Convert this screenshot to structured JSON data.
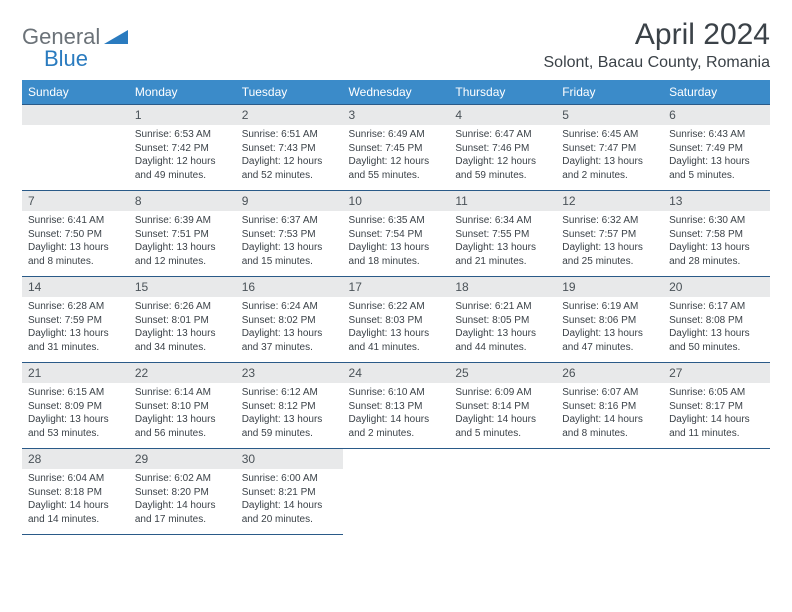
{
  "logo": {
    "general": "General",
    "blue": "Blue"
  },
  "title": "April 2024",
  "location": "Solont, Bacau County, Romania",
  "colors": {
    "header_bg": "#3b8bc9",
    "header_text": "#ffffff",
    "daynum_bg": "#e8e9ea",
    "border": "#2a5a88",
    "logo_gray": "#6b7278",
    "logo_blue": "#2a7bbf",
    "text": "#3b4248"
  },
  "weekdays": [
    "Sunday",
    "Monday",
    "Tuesday",
    "Wednesday",
    "Thursday",
    "Friday",
    "Saturday"
  ],
  "weeks": [
    [
      {
        "n": "",
        "sr": "",
        "ss": "",
        "dl": ""
      },
      {
        "n": "1",
        "sr": "Sunrise: 6:53 AM",
        "ss": "Sunset: 7:42 PM",
        "dl": "Daylight: 12 hours and 49 minutes."
      },
      {
        "n": "2",
        "sr": "Sunrise: 6:51 AM",
        "ss": "Sunset: 7:43 PM",
        "dl": "Daylight: 12 hours and 52 minutes."
      },
      {
        "n": "3",
        "sr": "Sunrise: 6:49 AM",
        "ss": "Sunset: 7:45 PM",
        "dl": "Daylight: 12 hours and 55 minutes."
      },
      {
        "n": "4",
        "sr": "Sunrise: 6:47 AM",
        "ss": "Sunset: 7:46 PM",
        "dl": "Daylight: 12 hours and 59 minutes."
      },
      {
        "n": "5",
        "sr": "Sunrise: 6:45 AM",
        "ss": "Sunset: 7:47 PM",
        "dl": "Daylight: 13 hours and 2 minutes."
      },
      {
        "n": "6",
        "sr": "Sunrise: 6:43 AM",
        "ss": "Sunset: 7:49 PM",
        "dl": "Daylight: 13 hours and 5 minutes."
      }
    ],
    [
      {
        "n": "7",
        "sr": "Sunrise: 6:41 AM",
        "ss": "Sunset: 7:50 PM",
        "dl": "Daylight: 13 hours and 8 minutes."
      },
      {
        "n": "8",
        "sr": "Sunrise: 6:39 AM",
        "ss": "Sunset: 7:51 PM",
        "dl": "Daylight: 13 hours and 12 minutes."
      },
      {
        "n": "9",
        "sr": "Sunrise: 6:37 AM",
        "ss": "Sunset: 7:53 PM",
        "dl": "Daylight: 13 hours and 15 minutes."
      },
      {
        "n": "10",
        "sr": "Sunrise: 6:35 AM",
        "ss": "Sunset: 7:54 PM",
        "dl": "Daylight: 13 hours and 18 minutes."
      },
      {
        "n": "11",
        "sr": "Sunrise: 6:34 AM",
        "ss": "Sunset: 7:55 PM",
        "dl": "Daylight: 13 hours and 21 minutes."
      },
      {
        "n": "12",
        "sr": "Sunrise: 6:32 AM",
        "ss": "Sunset: 7:57 PM",
        "dl": "Daylight: 13 hours and 25 minutes."
      },
      {
        "n": "13",
        "sr": "Sunrise: 6:30 AM",
        "ss": "Sunset: 7:58 PM",
        "dl": "Daylight: 13 hours and 28 minutes."
      }
    ],
    [
      {
        "n": "14",
        "sr": "Sunrise: 6:28 AM",
        "ss": "Sunset: 7:59 PM",
        "dl": "Daylight: 13 hours and 31 minutes."
      },
      {
        "n": "15",
        "sr": "Sunrise: 6:26 AM",
        "ss": "Sunset: 8:01 PM",
        "dl": "Daylight: 13 hours and 34 minutes."
      },
      {
        "n": "16",
        "sr": "Sunrise: 6:24 AM",
        "ss": "Sunset: 8:02 PM",
        "dl": "Daylight: 13 hours and 37 minutes."
      },
      {
        "n": "17",
        "sr": "Sunrise: 6:22 AM",
        "ss": "Sunset: 8:03 PM",
        "dl": "Daylight: 13 hours and 41 minutes."
      },
      {
        "n": "18",
        "sr": "Sunrise: 6:21 AM",
        "ss": "Sunset: 8:05 PM",
        "dl": "Daylight: 13 hours and 44 minutes."
      },
      {
        "n": "19",
        "sr": "Sunrise: 6:19 AM",
        "ss": "Sunset: 8:06 PM",
        "dl": "Daylight: 13 hours and 47 minutes."
      },
      {
        "n": "20",
        "sr": "Sunrise: 6:17 AM",
        "ss": "Sunset: 8:08 PM",
        "dl": "Daylight: 13 hours and 50 minutes."
      }
    ],
    [
      {
        "n": "21",
        "sr": "Sunrise: 6:15 AM",
        "ss": "Sunset: 8:09 PM",
        "dl": "Daylight: 13 hours and 53 minutes."
      },
      {
        "n": "22",
        "sr": "Sunrise: 6:14 AM",
        "ss": "Sunset: 8:10 PM",
        "dl": "Daylight: 13 hours and 56 minutes."
      },
      {
        "n": "23",
        "sr": "Sunrise: 6:12 AM",
        "ss": "Sunset: 8:12 PM",
        "dl": "Daylight: 13 hours and 59 minutes."
      },
      {
        "n": "24",
        "sr": "Sunrise: 6:10 AM",
        "ss": "Sunset: 8:13 PM",
        "dl": "Daylight: 14 hours and 2 minutes."
      },
      {
        "n": "25",
        "sr": "Sunrise: 6:09 AM",
        "ss": "Sunset: 8:14 PM",
        "dl": "Daylight: 14 hours and 5 minutes."
      },
      {
        "n": "26",
        "sr": "Sunrise: 6:07 AM",
        "ss": "Sunset: 8:16 PM",
        "dl": "Daylight: 14 hours and 8 minutes."
      },
      {
        "n": "27",
        "sr": "Sunrise: 6:05 AM",
        "ss": "Sunset: 8:17 PM",
        "dl": "Daylight: 14 hours and 11 minutes."
      }
    ],
    [
      {
        "n": "28",
        "sr": "Sunrise: 6:04 AM",
        "ss": "Sunset: 8:18 PM",
        "dl": "Daylight: 14 hours and 14 minutes."
      },
      {
        "n": "29",
        "sr": "Sunrise: 6:02 AM",
        "ss": "Sunset: 8:20 PM",
        "dl": "Daylight: 14 hours and 17 minutes."
      },
      {
        "n": "30",
        "sr": "Sunrise: 6:00 AM",
        "ss": "Sunset: 8:21 PM",
        "dl": "Daylight: 14 hours and 20 minutes."
      },
      {
        "n": "",
        "sr": "",
        "ss": "",
        "dl": ""
      },
      {
        "n": "",
        "sr": "",
        "ss": "",
        "dl": ""
      },
      {
        "n": "",
        "sr": "",
        "ss": "",
        "dl": ""
      },
      {
        "n": "",
        "sr": "",
        "ss": "",
        "dl": ""
      }
    ]
  ]
}
